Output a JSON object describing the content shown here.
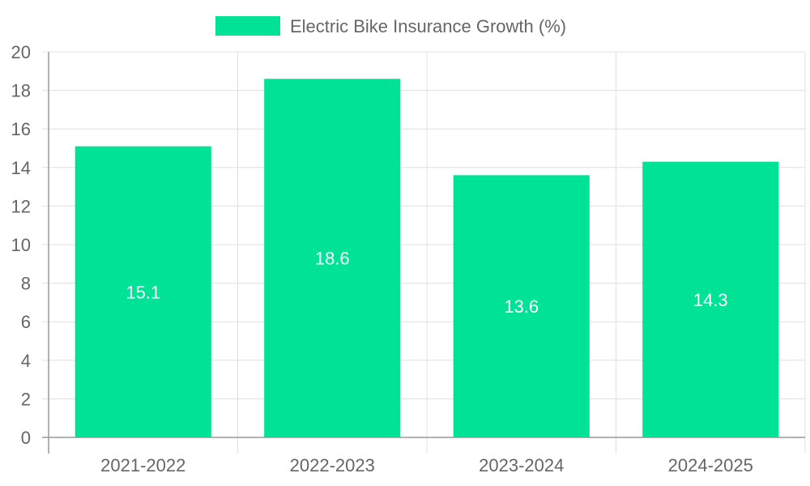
{
  "chart_data": {
    "type": "bar",
    "title": "",
    "xlabel": "",
    "ylabel": "",
    "categories": [
      "2021-2022",
      "2022-2023",
      "2023-2024",
      "2024-2025"
    ],
    "series": [
      {
        "name": "Electric Bike Insurance Growth (%)",
        "values": [
          15.1,
          18.6,
          13.6,
          14.3
        ],
        "color": "#00e296"
      }
    ],
    "ylim": [
      0,
      20
    ],
    "yticks": [
      0,
      2,
      4,
      6,
      8,
      10,
      12,
      14,
      16,
      18,
      20
    ],
    "grid": true,
    "legend_position": "top-center",
    "data_labels": true,
    "colors": {
      "grid": "#e0e0e0",
      "axis": "#999999",
      "tick_text": "#666666",
      "legend_text": "#666666",
      "data_label_text": "#ffffff"
    }
  }
}
